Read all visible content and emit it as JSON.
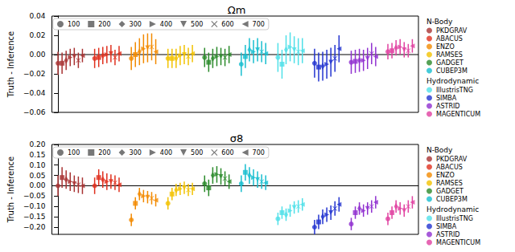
{
  "chart_data": [
    {
      "type": "scatter",
      "title": "Ωm",
      "y_label": "Truth - Inference",
      "ylim": [
        -0.06,
        0.04
      ],
      "yticks": [
        {
          "value": -0.06,
          "label": "−0.06"
        },
        {
          "value": -0.04,
          "label": "−0.04"
        },
        {
          "value": -0.02,
          "label": "−0.02"
        },
        {
          "value": 0,
          "label": "0.00"
        },
        {
          "value": 0.02,
          "label": "0.02"
        },
        {
          "value": 0.04,
          "label": "0.04"
        }
      ],
      "grid": false,
      "tick_labels": "y",
      "hline": 0,
      "marker_legend": [
        {
          "name": "100",
          "marker": "circle"
        },
        {
          "name": "200",
          "marker": "square"
        },
        {
          "name": "300",
          "marker": "thin_diamond"
        },
        {
          "name": "400",
          "marker": "triangle_right"
        },
        {
          "name": "500",
          "marker": "triangle_down"
        },
        {
          "name": "600",
          "marker": "x"
        },
        {
          "name": "700",
          "marker": "triangle_left"
        }
      ],
      "legend_groups": [
        {
          "title": "N-Body",
          "names": [
            "PKDGRAV",
            "ABACUS",
            "ENZO",
            "RAMSES",
            "GADGET",
            "CUBEP3M"
          ]
        },
        {
          "title": "Hydrodynamic",
          "names": [
            "IllustrisTNG",
            "SIMBA",
            "ASTRID",
            "MAGENTICUM"
          ]
        }
      ],
      "series": [
        {
          "name": "PKDGRAV",
          "color": "#a83232",
          "values": [
            -0.009,
            -0.009,
            -0.006,
            -0.003,
            -0.002,
            -0.006,
            -0.001
          ],
          "errors": [
            0.012,
            0.011,
            0.01,
            0.009,
            0.009,
            0.008,
            0.007
          ]
        },
        {
          "name": "ABACUS",
          "color": "#e0301e",
          "values": [
            -0.004,
            -0.003,
            -0.001,
            0.0,
            0.001,
            -0.003,
            0.001
          ],
          "errors": [
            0.01,
            0.01,
            0.009,
            0.009,
            0.009,
            0.008,
            0.008
          ]
        },
        {
          "name": "ENZO",
          "color": "#f28a00",
          "values": [
            -0.004,
            0.0,
            0.003,
            0.006,
            0.007,
            0.008,
            0.003
          ],
          "errors": [
            0.012,
            0.013,
            0.014,
            0.015,
            0.015,
            0.014,
            0.013
          ]
        },
        {
          "name": "RAMSES",
          "color": "#f2c200",
          "values": [
            -0.004,
            -0.004,
            -0.004,
            -0.001,
            0.0,
            -0.002,
            0.001
          ],
          "errors": [
            0.01,
            0.01,
            0.01,
            0.01,
            0.01,
            0.009,
            0.009
          ]
        },
        {
          "name": "GADGET",
          "color": "#2a8a2a",
          "values": [
            -0.003,
            -0.008,
            -0.004,
            -0.002,
            -0.002,
            -0.003,
            0.0
          ],
          "errors": [
            0.01,
            0.01,
            0.01,
            0.01,
            0.009,
            0.009,
            0.009
          ]
        },
        {
          "name": "CUBEP3M",
          "color": "#17becf",
          "values": [
            -0.01,
            -0.002,
            0.005,
            0.003,
            0.005,
            0.003,
            0.001
          ],
          "errors": [
            0.012,
            0.012,
            0.012,
            0.012,
            0.012,
            0.011,
            0.011
          ]
        },
        {
          "name": "IllustrisTNG",
          "color": "#4fe0e8",
          "values": [
            -0.003,
            -0.01,
            0.005,
            0.008,
            0.005,
            0.003,
            0.004
          ],
          "errors": [
            0.015,
            0.015,
            0.015,
            0.015,
            0.014,
            0.014,
            0.013
          ]
        },
        {
          "name": "SIMBA",
          "color": "#2233d0",
          "values": [
            -0.009,
            -0.013,
            -0.012,
            -0.01,
            -0.008,
            -0.004,
            0.006
          ],
          "errors": [
            0.015,
            0.015,
            0.015,
            0.015,
            0.015,
            0.014,
            0.014
          ]
        },
        {
          "name": "ASTRID",
          "color": "#9030d0",
          "values": [
            -0.008,
            -0.007,
            -0.006,
            -0.006,
            -0.004,
            0.001,
            -0.002
          ],
          "errors": [
            0.012,
            0.012,
            0.012,
            0.011,
            0.011,
            0.011,
            0.01
          ]
        },
        {
          "name": "MAGENTICUM",
          "color": "#e040a0",
          "values": [
            0.003,
            0.004,
            0.007,
            0.008,
            0.005,
            0.004,
            0.009
          ],
          "errors": [
            0.008,
            0.008,
            0.008,
            0.008,
            0.008,
            0.007,
            0.007
          ]
        }
      ]
    },
    {
      "type": "scatter",
      "title": "σ8",
      "y_label": "Truth - Inference",
      "ylim": [
        -0.235,
        0.2
      ],
      "yticks": [
        {
          "value": -0.2,
          "label": "−0.20"
        },
        {
          "value": -0.15,
          "label": "−0.15"
        },
        {
          "value": -0.1,
          "label": "−0.10"
        },
        {
          "value": -0.05,
          "label": "−0.05"
        },
        {
          "value": 0,
          "label": "0.00"
        },
        {
          "value": 0.05,
          "label": "0.05"
        },
        {
          "value": 0.1,
          "label": "0.10"
        },
        {
          "value": 0.15,
          "label": "0.15"
        },
        {
          "value": 0.2,
          "label": "0.20"
        }
      ],
      "grid": false,
      "tick_labels": "y",
      "hline": 0,
      "marker_legend": [
        {
          "name": "100",
          "marker": "circle"
        },
        {
          "name": "200",
          "marker": "square"
        },
        {
          "name": "300",
          "marker": "thin_diamond"
        },
        {
          "name": "400",
          "marker": "triangle_right"
        },
        {
          "name": "500",
          "marker": "triangle_down"
        },
        {
          "name": "600",
          "marker": "x"
        },
        {
          "name": "700",
          "marker": "triangle_left"
        }
      ],
      "legend_groups": [
        {
          "title": "N-Body",
          "names": [
            "PKDGRAV",
            "ABACUS",
            "ENZO",
            "RAMSES",
            "GADGET",
            "CUBEP3M"
          ]
        },
        {
          "title": "Hydrodynamic",
          "names": [
            "IllustrisTNG",
            "SIMBA",
            "ASTRID",
            "MAGENTICUM"
          ]
        }
      ],
      "series": [
        {
          "name": "PKDGRAV",
          "color": "#a83232",
          "values": [
            0.0,
            0.04,
            0.03,
            0.02,
            0.01,
            0.005,
            0.0
          ],
          "errors": [
            0.05,
            0.05,
            0.045,
            0.045,
            0.04,
            0.04,
            0.04
          ]
        },
        {
          "name": "ABACUS",
          "color": "#e0301e",
          "values": [
            0.0,
            0.04,
            0.03,
            0.02,
            0.02,
            0.015,
            0.005
          ],
          "errors": [
            0.04,
            0.04,
            0.04,
            0.04,
            0.035,
            0.035,
            0.035
          ]
        },
        {
          "name": "ENZO",
          "color": "#f28a00",
          "values": [
            -0.165,
            -0.085,
            -0.04,
            -0.05,
            -0.055,
            -0.06,
            -0.07
          ],
          "errors": [
            0.03,
            0.03,
            0.03,
            0.03,
            0.03,
            0.03,
            0.03
          ]
        },
        {
          "name": "RAMSES",
          "color": "#f2c200",
          "values": [
            -0.085,
            -0.04,
            -0.02,
            -0.015,
            -0.01,
            -0.02,
            -0.015
          ],
          "errors": [
            0.03,
            0.03,
            0.03,
            0.03,
            0.03,
            0.03,
            0.03
          ]
        },
        {
          "name": "GADGET",
          "color": "#2a8a2a",
          "values": [
            0.01,
            -0.01,
            0.05,
            0.055,
            0.045,
            0.035,
            0.02
          ],
          "errors": [
            0.04,
            0.04,
            0.04,
            0.04,
            0.04,
            0.035,
            0.035
          ]
        },
        {
          "name": "CUBEP3M",
          "color": "#17becf",
          "values": [
            0.01,
            0.065,
            0.05,
            0.04,
            0.03,
            0.02,
            0.015
          ],
          "errors": [
            0.04,
            0.04,
            0.04,
            0.04,
            0.04,
            0.035,
            0.035
          ]
        },
        {
          "name": "IllustrisTNG",
          "color": "#4fe0e8",
          "values": [
            -0.16,
            -0.13,
            -0.14,
            -0.12,
            -0.105,
            -0.1,
            -0.09
          ],
          "errors": [
            0.03,
            0.03,
            0.03,
            0.03,
            0.03,
            0.03,
            0.03
          ]
        },
        {
          "name": "SIMBA",
          "color": "#2233d0",
          "values": [
            -0.2,
            -0.175,
            -0.15,
            -0.14,
            -0.13,
            -0.11,
            -0.09
          ],
          "errors": [
            0.035,
            0.035,
            0.035,
            0.035,
            0.035,
            0.035,
            0.035
          ]
        },
        {
          "name": "ASTRID",
          "color": "#9030d0",
          "values": [
            -0.185,
            -0.13,
            -0.11,
            -0.12,
            -0.11,
            -0.1,
            -0.08
          ],
          "errors": [
            0.03,
            0.03,
            0.03,
            0.03,
            0.03,
            0.03,
            0.03
          ]
        },
        {
          "name": "MAGENTICUM",
          "color": "#e040a0",
          "values": [
            -0.16,
            -0.13,
            -0.1,
            -0.11,
            -0.12,
            -0.1,
            -0.08
          ],
          "errors": [
            0.03,
            0.03,
            0.03,
            0.03,
            0.03,
            0.03,
            0.03
          ]
        }
      ]
    }
  ]
}
